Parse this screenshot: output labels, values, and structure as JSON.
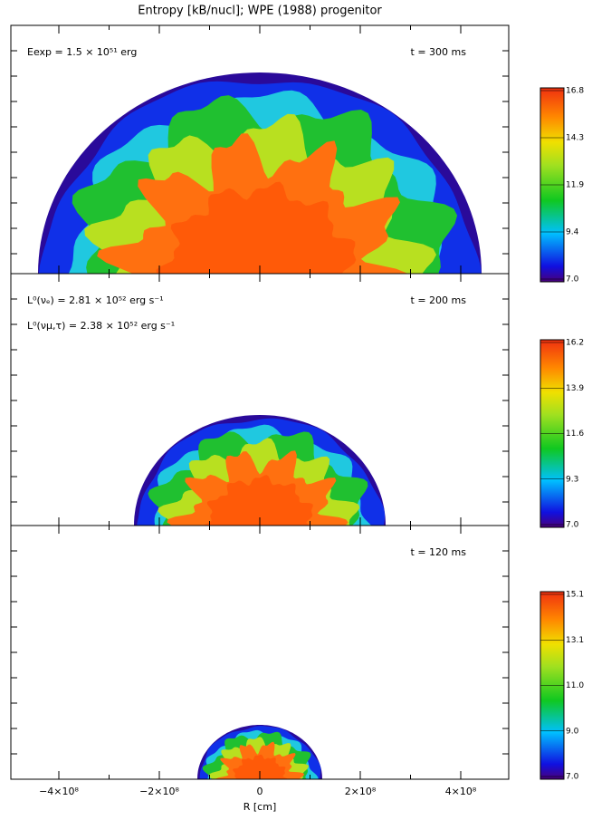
{
  "title": "Entropy [kB/nucl]; WPE (1988) progenitor",
  "panels": [
    {
      "time": "t = 300 ms",
      "notes": [
        "Eexp = 1.5 × 10⁵¹ erg"
      ],
      "colorbar": [
        "16.8",
        "14.3",
        "11.9",
        "9.4",
        "7.0"
      ]
    },
    {
      "time": "t = 200 ms",
      "notes": [
        "L⁰(νₑ)  = 2.81 × 10⁵² erg s⁻¹",
        "L⁰(νμ,τ) = 2.38 × 10⁵² erg s⁻¹"
      ],
      "colorbar": [
        "16.2",
        "13.9",
        "11.6",
        "9.3",
        "7.0"
      ]
    },
    {
      "time": "t = 120 ms",
      "notes": [],
      "colorbar": [
        "15.1",
        "13.1",
        "11.0",
        "9.0",
        "7.0"
      ]
    }
  ],
  "x_axis": {
    "ticks": [
      "−4×10⁸",
      "−2×10⁸",
      "0",
      "2×10⁸",
      "4×10⁸"
    ],
    "label": "R [cm]"
  }
}
